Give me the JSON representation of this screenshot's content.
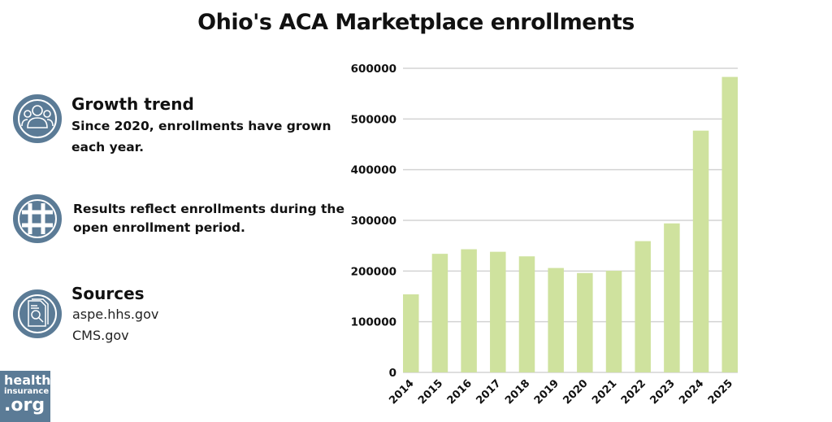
{
  "chart_data": {
    "type": "bar",
    "title": "Ohio's ACA Marketplace enrollments",
    "categories": [
      "2014",
      "2015",
      "2016",
      "2017",
      "2018",
      "2019",
      "2020",
      "2021",
      "2022",
      "2023",
      "2024",
      "2025"
    ],
    "values": [
      154000,
      234000,
      243000,
      238000,
      229000,
      206000,
      196000,
      200500,
      259000,
      294000,
      477000,
      583000
    ],
    "ylim": [
      0,
      600000
    ],
    "yticks": [
      "0",
      "100000",
      "200000",
      "300000",
      "400000",
      "500000",
      "600000"
    ],
    "grid": true,
    "bar_color": "#cfe29e",
    "grid_color": "#d3d3d3"
  },
  "sidebar": {
    "growth": {
      "icon": "people-group-icon",
      "heading": "Growth trend",
      "text1": "Since 2020, enrollments have grown",
      "text2": "each year."
    },
    "note": {
      "icon": "hashtag-icon",
      "text1": "Results reflect enrollments during the",
      "text2": "open enrollment period."
    },
    "sources": {
      "icon": "document-search-icon",
      "heading": "Sources",
      "items": [
        "aspe.hhs.gov",
        "CMS.gov"
      ]
    }
  },
  "logo": {
    "line1": "health",
    "line2": "insurance",
    "line3": ".org",
    "color": "#5b7b96"
  },
  "icon_color": "#5b7b96"
}
